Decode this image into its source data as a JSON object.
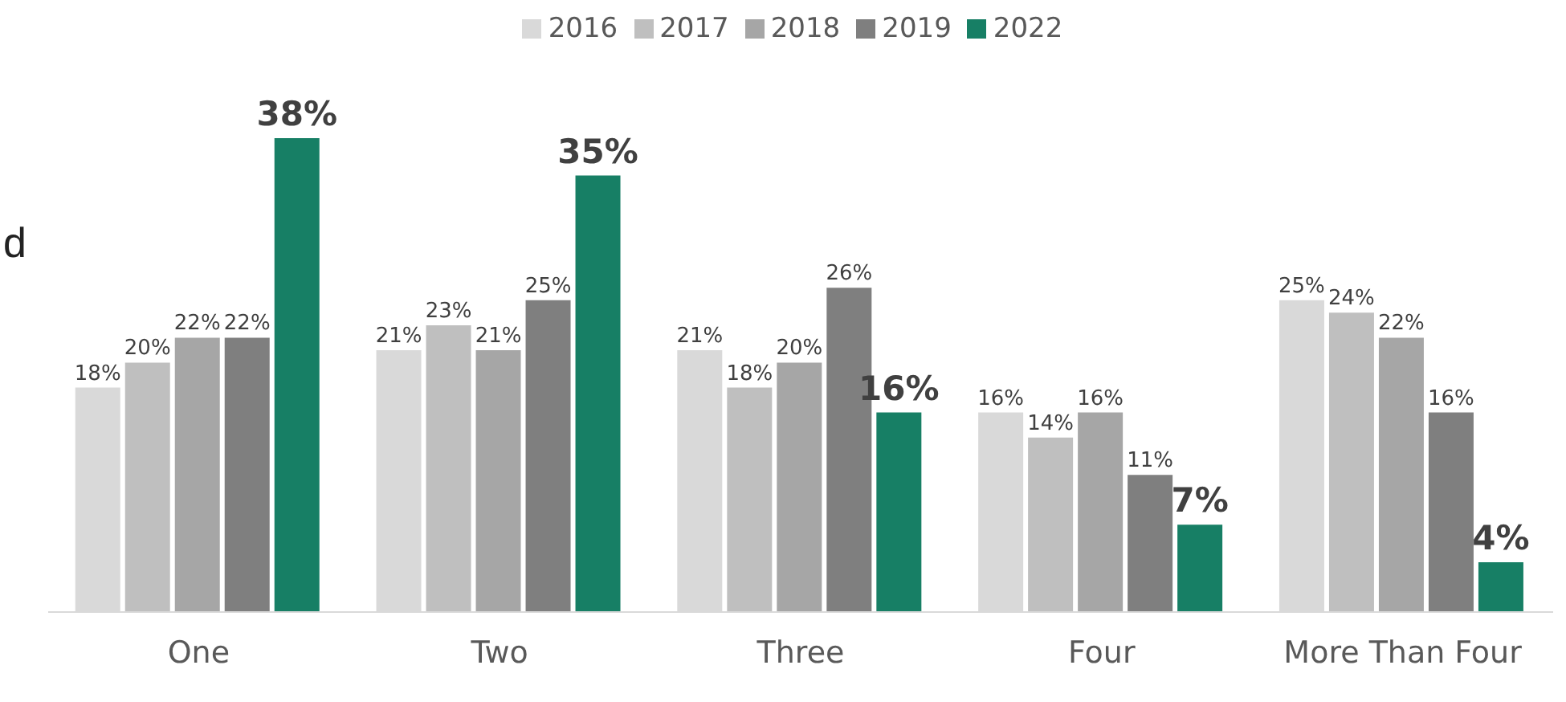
{
  "chart_data": {
    "type": "bar",
    "categories": [
      "One",
      "Two",
      "Three",
      "Four",
      "More Than Four"
    ],
    "series": [
      {
        "name": "2016",
        "color": "#d9d9d9",
        "values": [
          18,
          21,
          21,
          16,
          25
        ],
        "value_labels": [
          "18%",
          "21%",
          "21%",
          "16%",
          "25%"
        ]
      },
      {
        "name": "2017",
        "color": "#bfbfbf",
        "values": [
          20,
          23,
          18,
          14,
          24
        ],
        "value_labels": [
          "20%",
          "23%",
          "18%",
          "14%",
          "24%"
        ]
      },
      {
        "name": "2018",
        "color": "#a6a6a6",
        "values": [
          22,
          21,
          20,
          16,
          22
        ],
        "value_labels": [
          "22%",
          "21%",
          "20%",
          "16%",
          "22%"
        ]
      },
      {
        "name": "2019",
        "color": "#7f7f7f",
        "values": [
          22,
          25,
          26,
          11,
          16
        ],
        "value_labels": [
          "22%",
          "25%",
          "26%",
          "11%",
          "16%"
        ]
      },
      {
        "name": "2022",
        "color": "#177f65",
        "values": [
          38,
          35,
          16,
          7,
          4
        ],
        "value_labels": [
          "38%",
          "35%",
          "16%",
          "7%",
          "4%"
        ]
      }
    ],
    "legend": "top",
    "grid": false,
    "annotations": [
      "d"
    ]
  }
}
